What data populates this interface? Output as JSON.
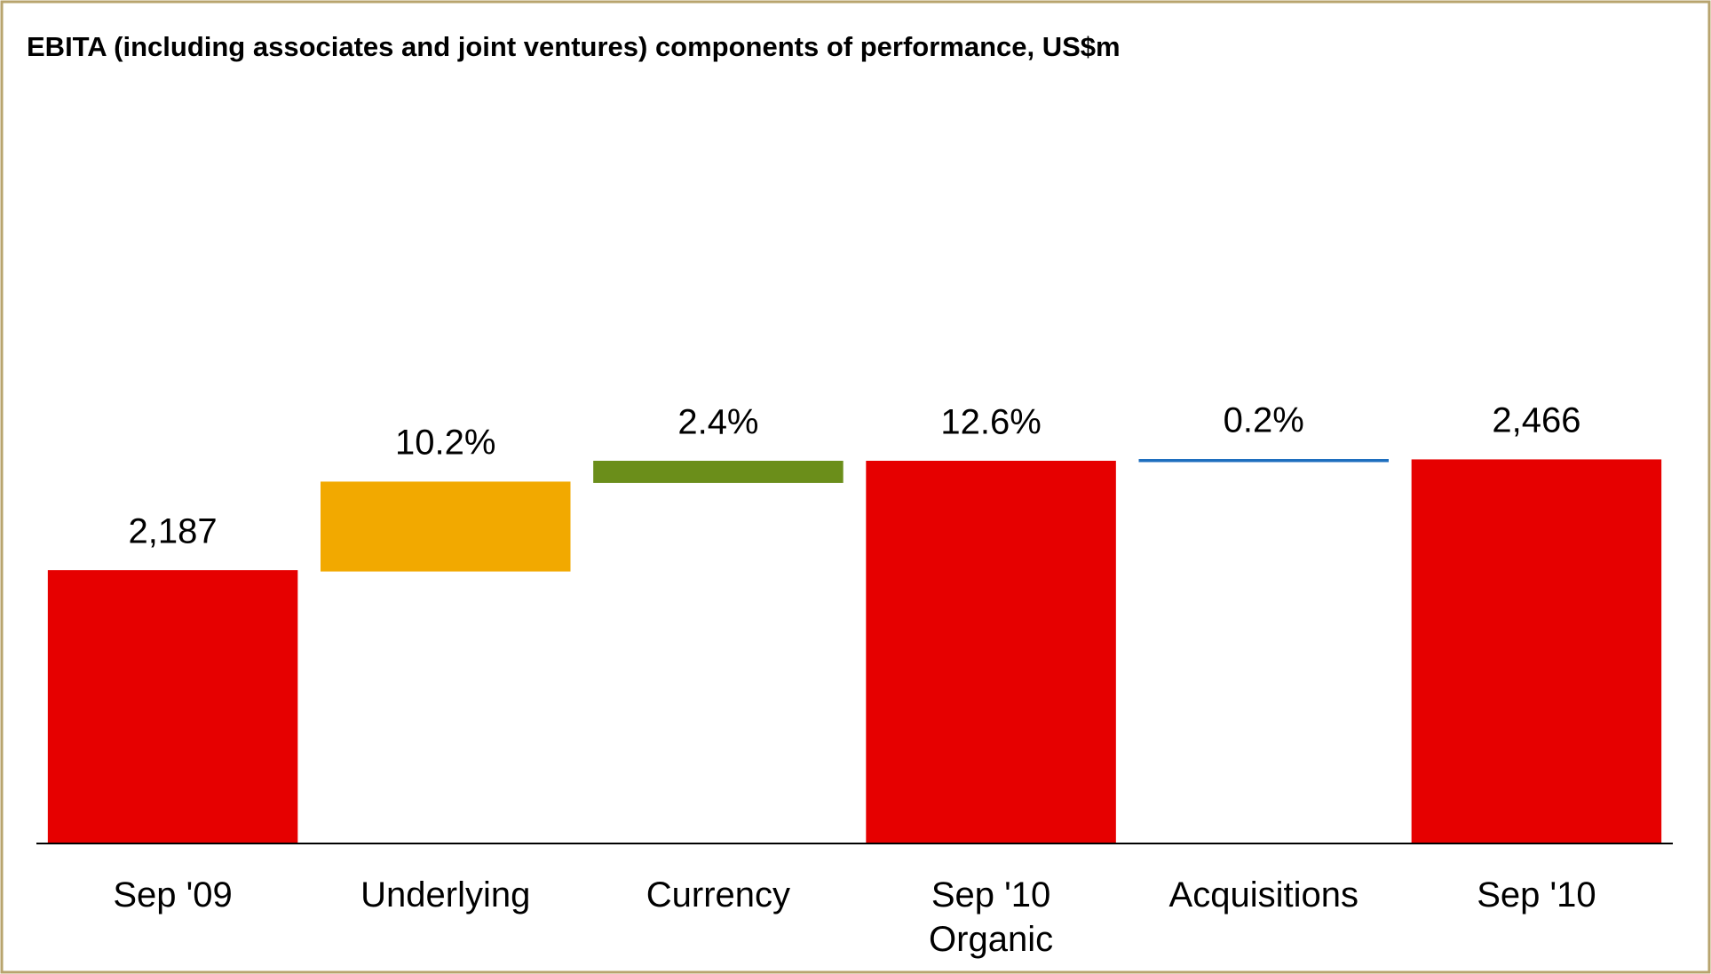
{
  "chart_data": {
    "type": "waterfall",
    "title": "EBITA (including associates and joint ventures) components of performance, US$m",
    "categories": [
      "Sep '09",
      "Underlying",
      "Currency",
      "Sep '10 Organic",
      "Acquisitions",
      "Sep '10"
    ],
    "values": [
      2187,
      10.2,
      2.4,
      12.6,
      0.2,
      2466
    ],
    "value_labels": [
      "2,187",
      "10.2%",
      "2.4%",
      "12.6%",
      "0.2%",
      "2,466"
    ],
    "measures": [
      "absolute",
      "relative",
      "relative",
      "total",
      "relative",
      "absolute"
    ],
    "colors": [
      "#e60000",
      "#f2a900",
      "#6b8e1a",
      "#e60000",
      "#1f6fbf",
      "#e60000"
    ],
    "ylim": [
      1500,
      3350
    ]
  }
}
